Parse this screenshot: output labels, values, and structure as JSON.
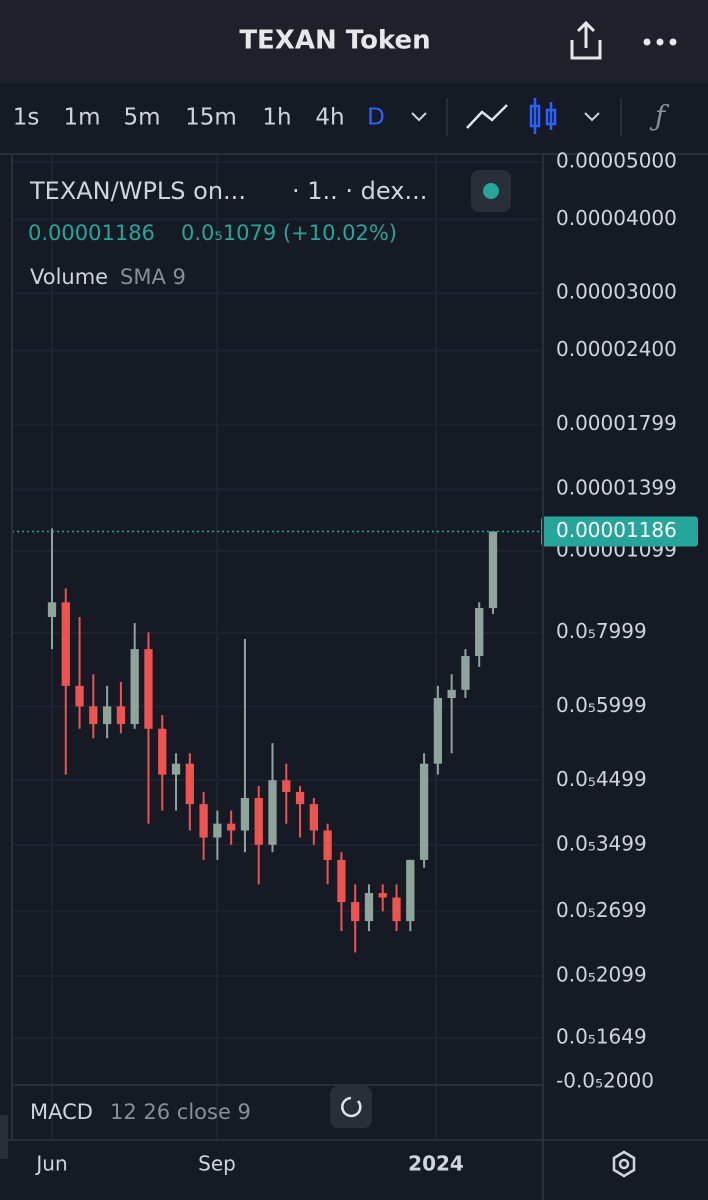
{
  "header": {
    "title": "TEXAN Token"
  },
  "toolbar": {
    "intervals": [
      "1s",
      "1m",
      "5m",
      "15m",
      "1h",
      "4h",
      "D"
    ],
    "active": 6
  },
  "legend": {
    "pair": "TEXAN/WPLS on...",
    "source": "· 1.. · dex...",
    "price": "0.00001186",
    "change": "0.0₅1079 (+10.02%)",
    "volume": "Volume",
    "volume_sma": "SMA 9"
  },
  "macd": {
    "name": "MACD",
    "params": "12 26 close 9"
  },
  "volume_axis_label": "-0.0₅2000",
  "time_axis": [
    "Jun",
    "Sep",
    "2024"
  ],
  "chart_data": {
    "type": "candlestick",
    "log_scale": true,
    "grid": true,
    "up_color": "#8fa59c",
    "down_color": "#ef5350",
    "ylim": [
      1.4e-06,
      5.14e-05
    ],
    "yticks": [
      {
        "value": 5e-05,
        "label": "0.00005000"
      },
      {
        "value": 4e-05,
        "label": "0.00004000"
      },
      {
        "value": 3e-05,
        "label": "0.00003000"
      },
      {
        "value": 2.4e-05,
        "label": "0.00002400"
      },
      {
        "value": 1.799e-05,
        "label": "0.00001799"
      },
      {
        "value": 1.399e-05,
        "label": "0.00001399"
      },
      {
        "value": 1.099e-05,
        "label": "0.00001099"
      },
      {
        "value": 7.999e-06,
        "label": "0.0₅7999"
      },
      {
        "value": 5.999e-06,
        "label": "0.0₅5999"
      },
      {
        "value": 4.499e-06,
        "label": "0.0₅4499"
      },
      {
        "value": 3.499e-06,
        "label": "0.0₅3499"
      },
      {
        "value": 2.699e-06,
        "label": "0.0₅2699"
      },
      {
        "value": 2.099e-06,
        "label": "0.0₅2099"
      },
      {
        "value": 1.649e-06,
        "label": "0.0₅1649"
      }
    ],
    "last_price": {
      "value": 1.186e-05,
      "label": "0.00001186"
    },
    "open": [
      8.5e-06,
      9e-06,
      6.5e-06,
      6e-06,
      5.6e-06,
      6e-06,
      5.6e-06,
      7.5e-06,
      5.5e-06,
      4.6e-06,
      4.8e-06,
      4.1e-06,
      3.6e-06,
      3.8e-06,
      3.7e-06,
      4.2e-06,
      3.5e-06,
      4.5e-06,
      4.3e-06,
      4.1e-06,
      3.7e-06,
      3.3e-06,
      2.8e-06,
      2.6e-06,
      2.9e-06,
      2.85e-06,
      2.6e-06,
      3.3e-06,
      4.8e-06,
      6.2e-06,
      6.4e-06,
      7.3e-06,
      8.8e-06
    ],
    "high": [
      1.2e-05,
      9.5e-06,
      8.5e-06,
      6.8e-06,
      6.5e-06,
      6.6e-06,
      8.3e-06,
      8e-06,
      5.8e-06,
      5e-06,
      5e-06,
      4.3e-06,
      4e-06,
      4e-06,
      7.8e-06,
      4.4e-06,
      5.2e-06,
      4.8e-06,
      4.4e-06,
      4.2e-06,
      3.8e-06,
      3.4e-06,
      3e-06,
      3e-06,
      3e-06,
      3e-06,
      3.3e-06,
      5e-06,
      6.5e-06,
      6.8e-06,
      7.5e-06,
      9e-06,
      1.186e-05
    ],
    "low": [
      7.5e-06,
      4.6e-06,
      5.5e-06,
      5.3e-06,
      5.3e-06,
      5.4e-06,
      5.5e-06,
      3.8e-06,
      4e-06,
      4e-06,
      3.7e-06,
      3.3e-06,
      3.3e-06,
      3.5e-06,
      3.4e-06,
      3e-06,
      3.4e-06,
      3.8e-06,
      3.6e-06,
      3.5e-06,
      3e-06,
      2.5e-06,
      2.3e-06,
      2.5e-06,
      2.7e-06,
      2.5e-06,
      2.5e-06,
      3.2e-06,
      4.6e-06,
      5e-06,
      6.2e-06,
      7e-06,
      8.6e-06
    ],
    "close": [
      9e-06,
      6.5e-06,
      6e-06,
      5.6e-06,
      6e-06,
      5.6e-06,
      7.5e-06,
      5.5e-06,
      4.6e-06,
      4.8e-06,
      4.1e-06,
      3.6e-06,
      3.8e-06,
      3.7e-06,
      4.2e-06,
      3.5e-06,
      4.5e-06,
      4.3e-06,
      4.1e-06,
      3.7e-06,
      3.3e-06,
      2.8e-06,
      2.6e-06,
      2.9e-06,
      2.85e-06,
      2.6e-06,
      3.3e-06,
      4.8e-06,
      6.2e-06,
      6.4e-06,
      7.3e-06,
      8.8e-06,
      1.186e-05
    ]
  }
}
